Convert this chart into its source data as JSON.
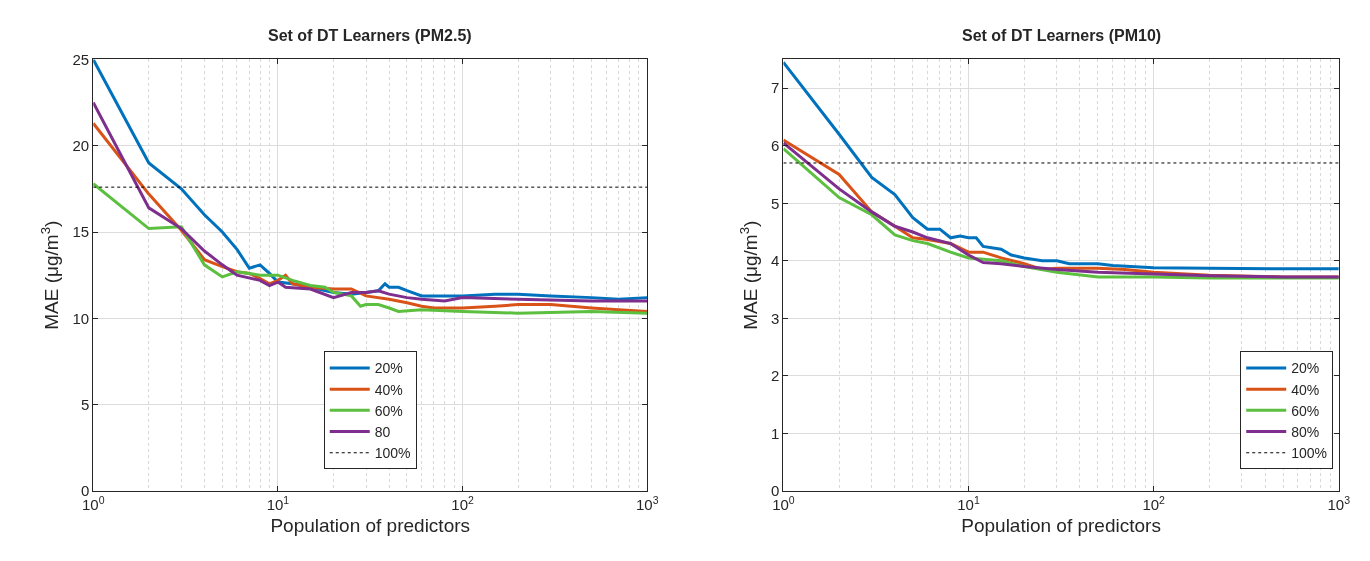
{
  "chart_data": [
    {
      "type": "line",
      "title": "Set of DT Learners (PM2.5)",
      "xlabel": "Population of predictors",
      "ylabel": "MAE (μg/m$^{3}$)",
      "log": "x",
      "grid": true,
      "legend": "bottom",
      "line_style": "solid",
      "marker": "none",
      "xlim": [
        1,
        1000
      ],
      "xticks": [
        {
          "value": 1,
          "label": "10$^{0}$"
        },
        {
          "value": 10,
          "label": "10$^{1}$"
        },
        {
          "value": 100,
          "label": "10$^{2}$"
        },
        {
          "value": 1000,
          "label": "10$^{3}$"
        }
      ],
      "ylim": [
        0,
        25
      ],
      "yticks": [
        0,
        5,
        10,
        15,
        20,
        25
      ],
      "series": [
        {
          "name": "20%",
          "color": "#0072bd",
          "x": [
            1,
            2,
            3,
            4,
            5,
            6,
            7,
            8,
            9,
            10,
            12,
            15,
            20,
            25,
            30,
            35,
            38,
            40,
            45,
            50,
            60,
            70,
            100,
            150,
            200,
            300,
            500,
            700,
            1000
          ],
          "values": [
            25,
            19,
            17.5,
            16,
            15,
            14,
            12.9,
            13.1,
            12.6,
            12.1,
            12,
            11.8,
            11.5,
            11.4,
            11.5,
            11.6,
            12,
            11.8,
            11.8,
            11.6,
            11.3,
            11.3,
            11.3,
            11.4,
            11.4,
            11.3,
            11.2,
            11.1,
            11.2
          ]
        },
        {
          "name": "40%",
          "color": "#d95319",
          "x": [
            1,
            2,
            3,
            4,
            5,
            6,
            7,
            8,
            9,
            10,
            11,
            12,
            15,
            20,
            25,
            30,
            40,
            50,
            60,
            70,
            100,
            150,
            200,
            300,
            500,
            700,
            1000
          ],
          "values": [
            21.3,
            17.2,
            15.1,
            13.4,
            13,
            12.7,
            12.6,
            12.3,
            12,
            12.2,
            12.5,
            12,
            11.8,
            11.7,
            11.7,
            11.3,
            11.1,
            10.9,
            10.7,
            10.6,
            10.6,
            10.7,
            10.8,
            10.8,
            10.6,
            10.5,
            10.4
          ]
        },
        {
          "name": "60%",
          "color": "#5cbf3f",
          "x": [
            1,
            2,
            3,
            4,
            5,
            6,
            7,
            8,
            10,
            12,
            15,
            18,
            20,
            25,
            28,
            30,
            35,
            40,
            45,
            60,
            100,
            200,
            500,
            1000
          ],
          "values": [
            17.8,
            15.2,
            15.3,
            13.1,
            12.4,
            12.7,
            12.6,
            12.5,
            12.5,
            12.2,
            11.9,
            11.8,
            11.5,
            11.3,
            10.7,
            10.8,
            10.8,
            10.6,
            10.4,
            10.5,
            10.4,
            10.3,
            10.4,
            10.3
          ]
        },
        {
          "name": "80",
          "color": "#7e2f8e",
          "x": [
            1,
            2,
            3,
            4,
            5,
            6,
            8,
            9,
            10,
            11,
            15,
            20,
            25,
            30,
            35,
            40,
            50,
            60,
            80,
            100,
            200,
            500,
            1000
          ],
          "values": [
            22.5,
            16.4,
            15.2,
            13.9,
            13.1,
            12.5,
            12.2,
            11.9,
            12.1,
            11.8,
            11.7,
            11.2,
            11.5,
            11.5,
            11.6,
            11.4,
            11.2,
            11.1,
            11,
            11.2,
            11.1,
            11,
            11
          ]
        },
        {
          "name": "100%",
          "color": "#000000",
          "line_style": "dotted",
          "x": [
            1,
            1000
          ],
          "values": [
            17.6,
            17.6
          ]
        }
      ]
    },
    {
      "type": "line",
      "title": "Set of DT Learners (PM10)",
      "xlabel": "Population of predictors",
      "ylabel": "MAE (μg/m$^{3}$)",
      "log": "x",
      "grid": true,
      "legend": "bottom right",
      "line_style": "solid",
      "marker": "none",
      "xlim": [
        1,
        1000
      ],
      "xticks": [
        {
          "value": 1,
          "label": "10$^{0}$"
        },
        {
          "value": 10,
          "label": "10$^{1}$"
        },
        {
          "value": 100,
          "label": "10$^{2}$"
        },
        {
          "value": 1000,
          "label": "10$^{3}$"
        }
      ],
      "ylim": [
        0,
        7.5
      ],
      "yticks": [
        0,
        1,
        2,
        3,
        4,
        5,
        6,
        7
      ],
      "series": [
        {
          "name": "20%",
          "color": "#0072bd",
          "x": [
            1,
            2,
            3,
            4,
            5,
            6,
            7,
            8,
            9,
            10,
            11,
            12,
            15,
            17,
            20,
            25,
            30,
            35,
            40,
            50,
            60,
            100,
            200,
            500,
            1000
          ],
          "values": [
            7.45,
            6.2,
            5.45,
            5.15,
            4.75,
            4.55,
            4.55,
            4.4,
            4.43,
            4.4,
            4.4,
            4.25,
            4.2,
            4.1,
            4.05,
            4,
            4,
            3.95,
            3.95,
            3.95,
            3.92,
            3.88,
            3.87,
            3.86,
            3.86
          ]
        },
        {
          "name": "40%",
          "color": "#d95319",
          "x": [
            1,
            2,
            3,
            4,
            5,
            6,
            8,
            10,
            12,
            15,
            20,
            25,
            30,
            50,
            70,
            100,
            200,
            500,
            1000
          ],
          "values": [
            6.1,
            5.5,
            4.85,
            4.6,
            4.4,
            4.37,
            4.3,
            4.15,
            4.15,
            4.05,
            3.95,
            3.85,
            3.87,
            3.87,
            3.85,
            3.8,
            3.75,
            3.72,
            3.72
          ]
        },
        {
          "name": "60%",
          "color": "#5cbf3f",
          "x": [
            1,
            2,
            3,
            4,
            5,
            6,
            8,
            10,
            15,
            20,
            30,
            50,
            100,
            200,
            1000
          ],
          "values": [
            5.95,
            5.1,
            4.8,
            4.45,
            4.35,
            4.3,
            4.15,
            4.05,
            4,
            3.9,
            3.8,
            3.72,
            3.72,
            3.7,
            3.7
          ]
        },
        {
          "name": "80%",
          "color": "#7e2f8e",
          "x": [
            1,
            2,
            3,
            4,
            5,
            6,
            8,
            10,
            12,
            15,
            20,
            30,
            50,
            100,
            200,
            500,
            1000
          ],
          "values": [
            6.05,
            5.25,
            4.85,
            4.6,
            4.5,
            4.4,
            4.3,
            4.1,
            3.97,
            3.95,
            3.9,
            3.85,
            3.8,
            3.77,
            3.74,
            3.72,
            3.72
          ]
        },
        {
          "name": "100%",
          "color": "#000000",
          "line_style": "dotted",
          "x": [
            1,
            1000
          ],
          "values": [
            5.7,
            5.7
          ]
        }
      ]
    }
  ]
}
